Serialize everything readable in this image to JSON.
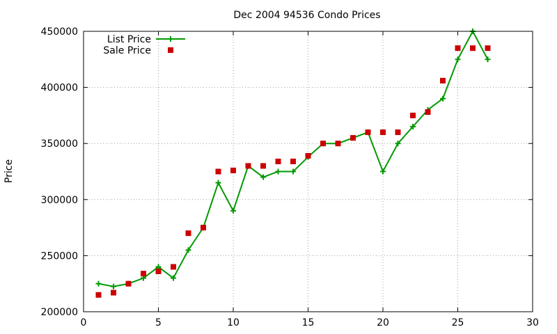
{
  "chart_data": {
    "type": "line",
    "title": "Dec 2004 94536 Condo Prices",
    "xlabel": "",
    "ylabel": "Price",
    "xlim": [
      0,
      30
    ],
    "ylim": [
      200000,
      450000
    ],
    "xticks": [
      0,
      5,
      10,
      15,
      20,
      25,
      30
    ],
    "yticks": [
      200000,
      250000,
      300000,
      350000,
      400000,
      450000
    ],
    "grid": true,
    "legend_position": "top-left",
    "series": [
      {
        "name": "List Price",
        "style": "line-with-plus-markers",
        "color": "#009900",
        "x": [
          1,
          2,
          3,
          4,
          5,
          6,
          7,
          8,
          9,
          10,
          11,
          12,
          13,
          14,
          15,
          16,
          17,
          18,
          19,
          20,
          21,
          22,
          23,
          24,
          25,
          26,
          27
        ],
        "values": [
          225000,
          222500,
          225000,
          230000,
          240000,
          230000,
          255000,
          275000,
          315000,
          290000,
          330000,
          320000,
          325000,
          325000,
          338000,
          350000,
          350000,
          355000,
          360000,
          325000,
          350000,
          365000,
          380000,
          390000,
          425000,
          450000,
          425000
        ]
      },
      {
        "name": "Sale Price",
        "style": "square-markers",
        "color": "#cc0000",
        "x": [
          1,
          2,
          3,
          4,
          5,
          6,
          7,
          8,
          9,
          10,
          11,
          12,
          13,
          14,
          15,
          16,
          17,
          18,
          19,
          20,
          21,
          22,
          23,
          24,
          25,
          26,
          27
        ],
        "values": [
          215000,
          217000,
          225000,
          234000,
          236000,
          240000,
          270000,
          275000,
          325000,
          326000,
          330000,
          330000,
          334000,
          334000,
          339000,
          350000,
          350000,
          355000,
          360000,
          360000,
          360000,
          375000,
          378000,
          406000,
          435000,
          435000,
          435000
        ]
      }
    ]
  }
}
